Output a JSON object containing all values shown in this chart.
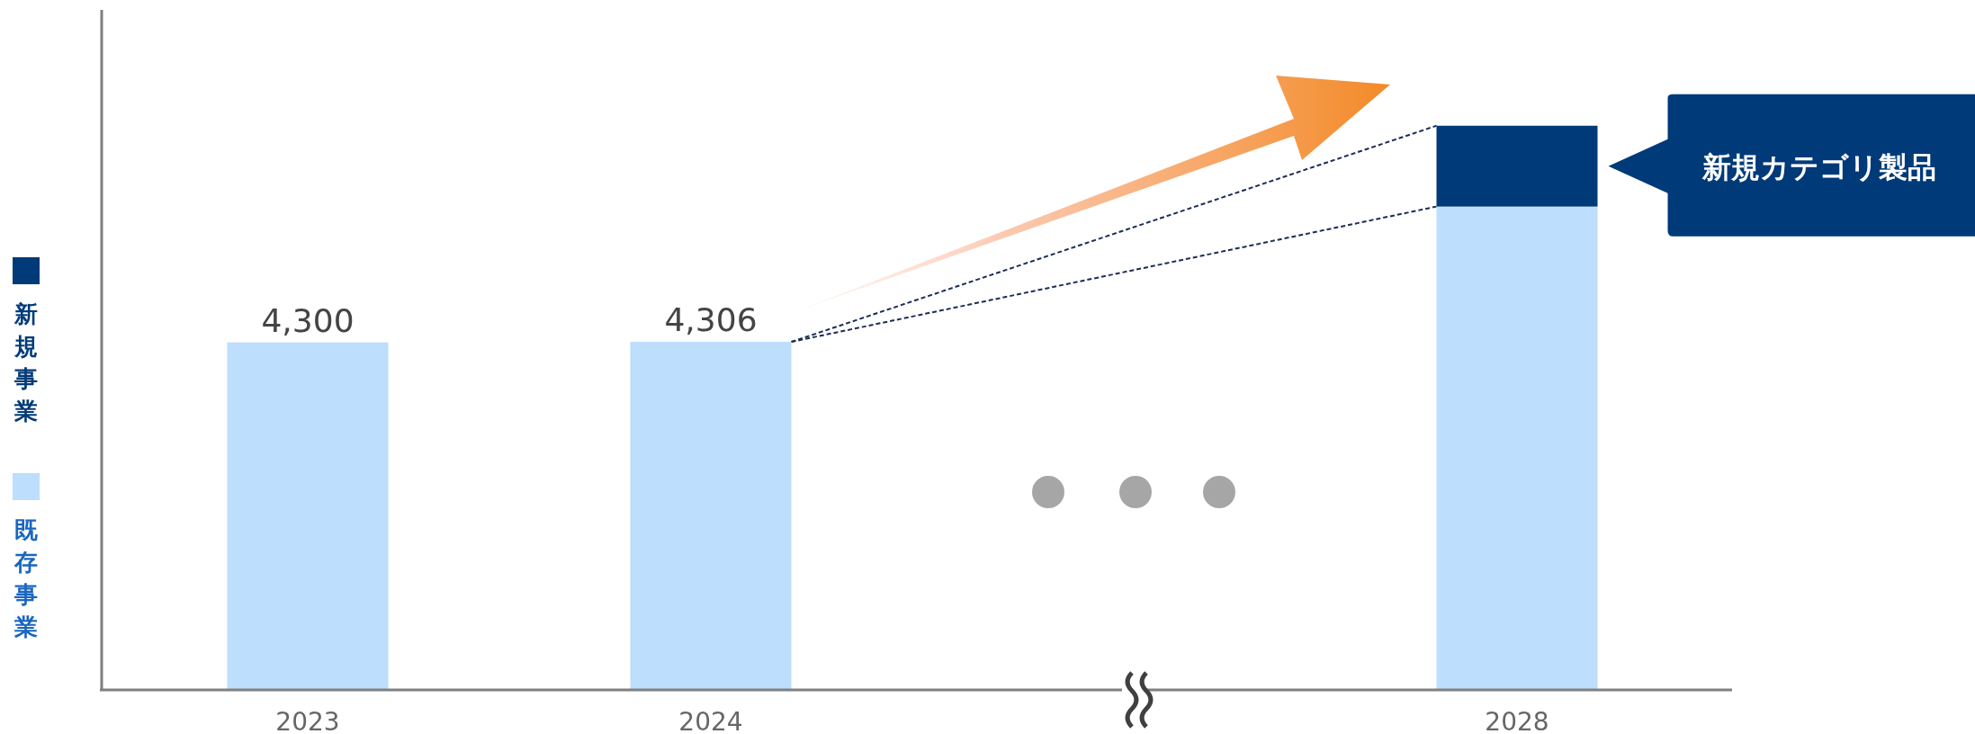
{
  "chart_data": {
    "type": "bar",
    "stacked": true,
    "legend": "left",
    "categories": [
      "2023",
      "2024",
      null,
      "2028"
    ],
    "series": [
      {
        "name": "既存事業",
        "color": "#bddefd",
        "values": [
          4300,
          4306,
          null,
          5980
        ],
        "value_labels": [
          "4,300",
          "4,306",
          null,
          null
        ]
      },
      {
        "name": "新規事業",
        "color": "#003a78",
        "values": [
          null,
          null,
          null,
          1000
        ]
      }
    ],
    "annotations": [
      "新規カテゴリ製品"
    ]
  }
}
